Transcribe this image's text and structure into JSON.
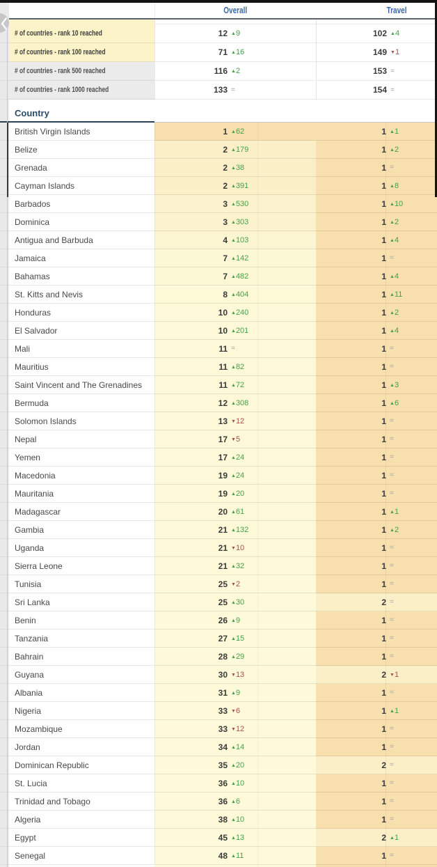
{
  "nav": {
    "back_chevron": "chevron-left"
  },
  "header": {
    "overall": "Overall",
    "travel": "Travel"
  },
  "summary": [
    {
      "label": "# of countries - rank 10 reached",
      "tone": "yellow",
      "overall": {
        "value": "12",
        "dir": "up",
        "change": "9"
      },
      "travel": {
        "value": "102",
        "dir": "up",
        "change": "4"
      }
    },
    {
      "label": "# of countries - rank 100 reached",
      "tone": "yellow",
      "overall": {
        "value": "71",
        "dir": "up",
        "change": "16"
      },
      "travel": {
        "value": "149",
        "dir": "down",
        "change": "1"
      }
    },
    {
      "label": "# of countries - rank 500 reached",
      "tone": "gray",
      "overall": {
        "value": "116",
        "dir": "up",
        "change": "2"
      },
      "travel": {
        "value": "153",
        "dir": "eq",
        "change": ""
      }
    },
    {
      "label": "# of countries - rank 1000 reached",
      "tone": "gray",
      "overall": {
        "value": "133",
        "dir": "eq",
        "change": ""
      },
      "travel": {
        "value": "154",
        "dir": "eq",
        "change": ""
      }
    }
  ],
  "country_header": "Country",
  "rows": [
    {
      "name": "British Virgin Islands",
      "overall": {
        "value": "1",
        "dir": "up",
        "change": "62"
      },
      "travel": {
        "value": "1",
        "dir": "up",
        "change": "1"
      }
    },
    {
      "name": "Belize",
      "overall": {
        "value": "2",
        "dir": "up",
        "change": "179"
      },
      "travel": {
        "value": "1",
        "dir": "up",
        "change": "2"
      }
    },
    {
      "name": "Grenada",
      "overall": {
        "value": "2",
        "dir": "up",
        "change": "38"
      },
      "travel": {
        "value": "1",
        "dir": "eq",
        "change": ""
      }
    },
    {
      "name": "Cayman Islands",
      "overall": {
        "value": "2",
        "dir": "up",
        "change": "391"
      },
      "travel": {
        "value": "1",
        "dir": "up",
        "change": "8"
      }
    },
    {
      "name": "Barbados",
      "overall": {
        "value": "3",
        "dir": "up",
        "change": "530"
      },
      "travel": {
        "value": "1",
        "dir": "up",
        "change": "10"
      }
    },
    {
      "name": "Dominica",
      "overall": {
        "value": "3",
        "dir": "up",
        "change": "303"
      },
      "travel": {
        "value": "1",
        "dir": "up",
        "change": "2"
      }
    },
    {
      "name": "Antigua and Barbuda",
      "overall": {
        "value": "4",
        "dir": "up",
        "change": "103"
      },
      "travel": {
        "value": "1",
        "dir": "up",
        "change": "4"
      }
    },
    {
      "name": "Jamaica",
      "overall": {
        "value": "7",
        "dir": "up",
        "change": "142"
      },
      "travel": {
        "value": "1",
        "dir": "eq",
        "change": ""
      }
    },
    {
      "name": "Bahamas",
      "overall": {
        "value": "7",
        "dir": "up",
        "change": "482"
      },
      "travel": {
        "value": "1",
        "dir": "up",
        "change": "4"
      }
    },
    {
      "name": "St. Kitts and Nevis",
      "overall": {
        "value": "8",
        "dir": "up",
        "change": "404"
      },
      "travel": {
        "value": "1",
        "dir": "up",
        "change": "11"
      }
    },
    {
      "name": "Honduras",
      "overall": {
        "value": "10",
        "dir": "up",
        "change": "240"
      },
      "travel": {
        "value": "1",
        "dir": "up",
        "change": "2"
      }
    },
    {
      "name": "El Salvador",
      "overall": {
        "value": "10",
        "dir": "up",
        "change": "201"
      },
      "travel": {
        "value": "1",
        "dir": "up",
        "change": "4"
      }
    },
    {
      "name": "Mali",
      "overall": {
        "value": "11",
        "dir": "eq",
        "change": ""
      },
      "travel": {
        "value": "1",
        "dir": "eq",
        "change": ""
      }
    },
    {
      "name": "Mauritius",
      "overall": {
        "value": "11",
        "dir": "up",
        "change": "82"
      },
      "travel": {
        "value": "1",
        "dir": "eq",
        "change": ""
      }
    },
    {
      "name": "Saint Vincent and The Grenadines",
      "overall": {
        "value": "11",
        "dir": "up",
        "change": "72"
      },
      "travel": {
        "value": "1",
        "dir": "up",
        "change": "3"
      }
    },
    {
      "name": "Bermuda",
      "overall": {
        "value": "12",
        "dir": "up",
        "change": "308"
      },
      "travel": {
        "value": "1",
        "dir": "up",
        "change": "6"
      }
    },
    {
      "name": "Solomon Islands",
      "overall": {
        "value": "13",
        "dir": "down",
        "change": "12"
      },
      "travel": {
        "value": "1",
        "dir": "eq",
        "change": ""
      }
    },
    {
      "name": "Nepal",
      "overall": {
        "value": "17",
        "dir": "down",
        "change": "5"
      },
      "travel": {
        "value": "1",
        "dir": "eq",
        "change": ""
      }
    },
    {
      "name": "Yemen",
      "overall": {
        "value": "17",
        "dir": "up",
        "change": "24"
      },
      "travel": {
        "value": "1",
        "dir": "eq",
        "change": ""
      }
    },
    {
      "name": "Macedonia",
      "overall": {
        "value": "19",
        "dir": "up",
        "change": "24"
      },
      "travel": {
        "value": "1",
        "dir": "eq",
        "change": ""
      }
    },
    {
      "name": "Mauritania",
      "overall": {
        "value": "19",
        "dir": "up",
        "change": "20"
      },
      "travel": {
        "value": "1",
        "dir": "eq",
        "change": ""
      }
    },
    {
      "name": "Madagascar",
      "overall": {
        "value": "20",
        "dir": "up",
        "change": "61"
      },
      "travel": {
        "value": "1",
        "dir": "up",
        "change": "1"
      }
    },
    {
      "name": "Gambia",
      "overall": {
        "value": "21",
        "dir": "up",
        "change": "132"
      },
      "travel": {
        "value": "1",
        "dir": "up",
        "change": "2"
      }
    },
    {
      "name": "Uganda",
      "overall": {
        "value": "21",
        "dir": "down",
        "change": "10"
      },
      "travel": {
        "value": "1",
        "dir": "eq",
        "change": ""
      }
    },
    {
      "name": "Sierra Leone",
      "overall": {
        "value": "21",
        "dir": "up",
        "change": "32"
      },
      "travel": {
        "value": "1",
        "dir": "eq",
        "change": ""
      }
    },
    {
      "name": "Tunisia",
      "overall": {
        "value": "25",
        "dir": "down",
        "change": "2"
      },
      "travel": {
        "value": "1",
        "dir": "eq",
        "change": ""
      }
    },
    {
      "name": "Sri Lanka",
      "overall": {
        "value": "25",
        "dir": "up",
        "change": "30"
      },
      "travel": {
        "value": "2",
        "dir": "eq",
        "change": ""
      }
    },
    {
      "name": "Benin",
      "overall": {
        "value": "26",
        "dir": "up",
        "change": "9"
      },
      "travel": {
        "value": "1",
        "dir": "eq",
        "change": ""
      }
    },
    {
      "name": "Tanzania",
      "overall": {
        "value": "27",
        "dir": "up",
        "change": "15"
      },
      "travel": {
        "value": "1",
        "dir": "eq",
        "change": ""
      }
    },
    {
      "name": "Bahrain",
      "overall": {
        "value": "28",
        "dir": "up",
        "change": "29"
      },
      "travel": {
        "value": "1",
        "dir": "eq",
        "change": ""
      }
    },
    {
      "name": "Guyana",
      "overall": {
        "value": "30",
        "dir": "down",
        "change": "13"
      },
      "travel": {
        "value": "2",
        "dir": "down",
        "change": "1"
      }
    },
    {
      "name": "Albania",
      "overall": {
        "value": "31",
        "dir": "up",
        "change": "9"
      },
      "travel": {
        "value": "1",
        "dir": "eq",
        "change": ""
      }
    },
    {
      "name": "Nigeria",
      "overall": {
        "value": "33",
        "dir": "down",
        "change": "6"
      },
      "travel": {
        "value": "1",
        "dir": "up",
        "change": "1"
      }
    },
    {
      "name": "Mozambique",
      "overall": {
        "value": "33",
        "dir": "down",
        "change": "12"
      },
      "travel": {
        "value": "1",
        "dir": "eq",
        "change": ""
      }
    },
    {
      "name": "Jordan",
      "overall": {
        "value": "34",
        "dir": "up",
        "change": "14"
      },
      "travel": {
        "value": "1",
        "dir": "eq",
        "change": ""
      }
    },
    {
      "name": "Dominican Republic",
      "overall": {
        "value": "35",
        "dir": "up",
        "change": "20"
      },
      "travel": {
        "value": "2",
        "dir": "eq",
        "change": ""
      }
    },
    {
      "name": "St. Lucia",
      "overall": {
        "value": "36",
        "dir": "up",
        "change": "10"
      },
      "travel": {
        "value": "1",
        "dir": "eq",
        "change": ""
      }
    },
    {
      "name": "Trinidad and Tobago",
      "overall": {
        "value": "36",
        "dir": "up",
        "change": "6"
      },
      "travel": {
        "value": "1",
        "dir": "eq",
        "change": ""
      }
    },
    {
      "name": "Algeria",
      "overall": {
        "value": "38",
        "dir": "up",
        "change": "10"
      },
      "travel": {
        "value": "1",
        "dir": "eq",
        "change": ""
      }
    },
    {
      "name": "Egypt",
      "overall": {
        "value": "45",
        "dir": "up",
        "change": "13"
      },
      "travel": {
        "value": "2",
        "dir": "up",
        "change": "1"
      }
    },
    {
      "name": "Senegal",
      "overall": {
        "value": "48",
        "dir": "up",
        "change": "11"
      },
      "travel": {
        "value": "1",
        "dir": "eq",
        "change": ""
      }
    }
  ],
  "colors": {
    "heat_dark": "#f8dfae",
    "heat_light": "#fdfada",
    "up": "#46a04a",
    "down": "#a8514b",
    "eq": "#a0a0a0",
    "header_blue": "#3a68a8",
    "yellow_row": "#fcf4c8",
    "gray_row": "#ebebeb"
  }
}
